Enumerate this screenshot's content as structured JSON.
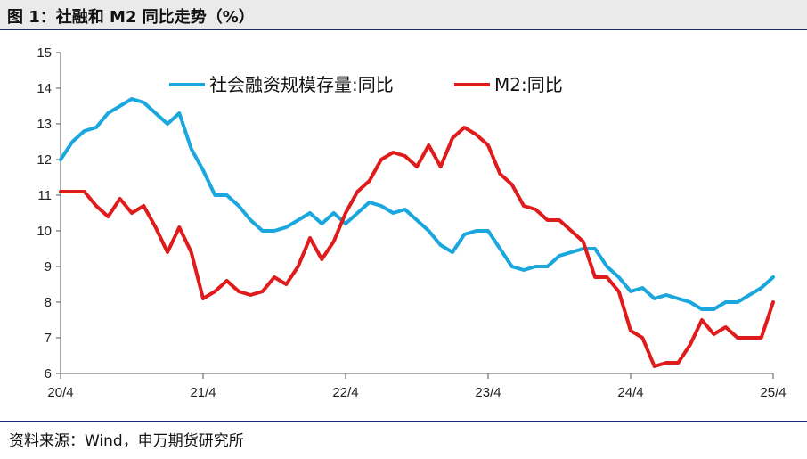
{
  "header": {
    "title": "图 1：社融和 M2 同比走势（%）"
  },
  "footer": {
    "source": "资料来源：Wind，申万期货研究所"
  },
  "colors": {
    "social_financing": "#1aa7dd",
    "m2": "#e01b1b",
    "axis": "#555555",
    "rule": "#1a2a6c"
  },
  "chart_data": {
    "type": "line",
    "title": "",
    "xlabel": "",
    "ylabel": "",
    "ylim": [
      6,
      15
    ],
    "yticks": [
      "6",
      "7",
      "8",
      "9",
      "10",
      "11",
      "12",
      "13",
      "14",
      "15"
    ],
    "x_tick_labels": [
      "20/4",
      "21/4",
      "22/4",
      "23/4",
      "24/4",
      "25/4"
    ],
    "x": [
      "2020-04",
      "2020-05",
      "2020-06",
      "2020-07",
      "2020-08",
      "2020-09",
      "2020-10",
      "2020-11",
      "2020-12",
      "2021-01",
      "2021-02",
      "2021-03",
      "2021-04",
      "2021-05",
      "2021-06",
      "2021-07",
      "2021-08",
      "2021-09",
      "2021-10",
      "2021-11",
      "2021-12",
      "2022-01",
      "2022-02",
      "2022-03",
      "2022-04",
      "2022-05",
      "2022-06",
      "2022-07",
      "2022-08",
      "2022-09",
      "2022-10",
      "2022-11",
      "2022-12",
      "2023-01",
      "2023-02",
      "2023-03",
      "2023-04",
      "2023-05",
      "2023-06",
      "2023-07",
      "2023-08",
      "2023-09",
      "2023-10",
      "2023-11",
      "2023-12",
      "2024-01",
      "2024-02",
      "2024-03",
      "2024-04",
      "2024-05",
      "2024-06",
      "2024-07",
      "2024-08",
      "2024-09",
      "2024-10",
      "2024-11",
      "2024-12",
      "2025-01",
      "2025-02",
      "2025-03",
      "2025-04"
    ],
    "legend_position": "top",
    "grid": false,
    "series": [
      {
        "name": "社会融资规模存量:同比",
        "color": "#1aa7dd",
        "values": [
          12.0,
          12.5,
          12.8,
          12.9,
          13.3,
          13.5,
          13.7,
          13.6,
          13.3,
          13.0,
          13.3,
          12.3,
          11.7,
          11.0,
          11.0,
          10.7,
          10.3,
          10.0,
          10.0,
          10.1,
          10.3,
          10.5,
          10.2,
          10.5,
          10.2,
          10.5,
          10.8,
          10.7,
          10.5,
          10.6,
          10.3,
          10.0,
          9.6,
          9.4,
          9.9,
          10.0,
          10.0,
          9.5,
          9.0,
          8.9,
          9.0,
          9.0,
          9.3,
          9.4,
          9.5,
          9.5,
          9.0,
          8.7,
          8.3,
          8.4,
          8.1,
          8.2,
          8.1,
          8.0,
          7.8,
          7.8,
          8.0,
          8.0,
          8.2,
          8.4,
          8.7
        ]
      },
      {
        "name": "M2:同比",
        "color": "#e01b1b",
        "values": [
          11.1,
          11.1,
          11.1,
          10.7,
          10.4,
          10.9,
          10.5,
          10.7,
          10.1,
          9.4,
          10.1,
          9.4,
          8.1,
          8.3,
          8.6,
          8.3,
          8.2,
          8.3,
          8.7,
          8.5,
          9.0,
          9.8,
          9.2,
          9.7,
          10.5,
          11.1,
          11.4,
          12.0,
          12.2,
          12.1,
          11.8,
          12.4,
          11.8,
          12.6,
          12.9,
          12.7,
          12.4,
          11.6,
          11.3,
          10.7,
          10.6,
          10.3,
          10.3,
          10.0,
          9.7,
          8.7,
          8.7,
          8.3,
          7.2,
          7.0,
          6.2,
          6.3,
          6.3,
          6.8,
          7.5,
          7.1,
          7.3,
          7.0,
          7.0,
          7.0,
          8.0
        ]
      }
    ]
  }
}
